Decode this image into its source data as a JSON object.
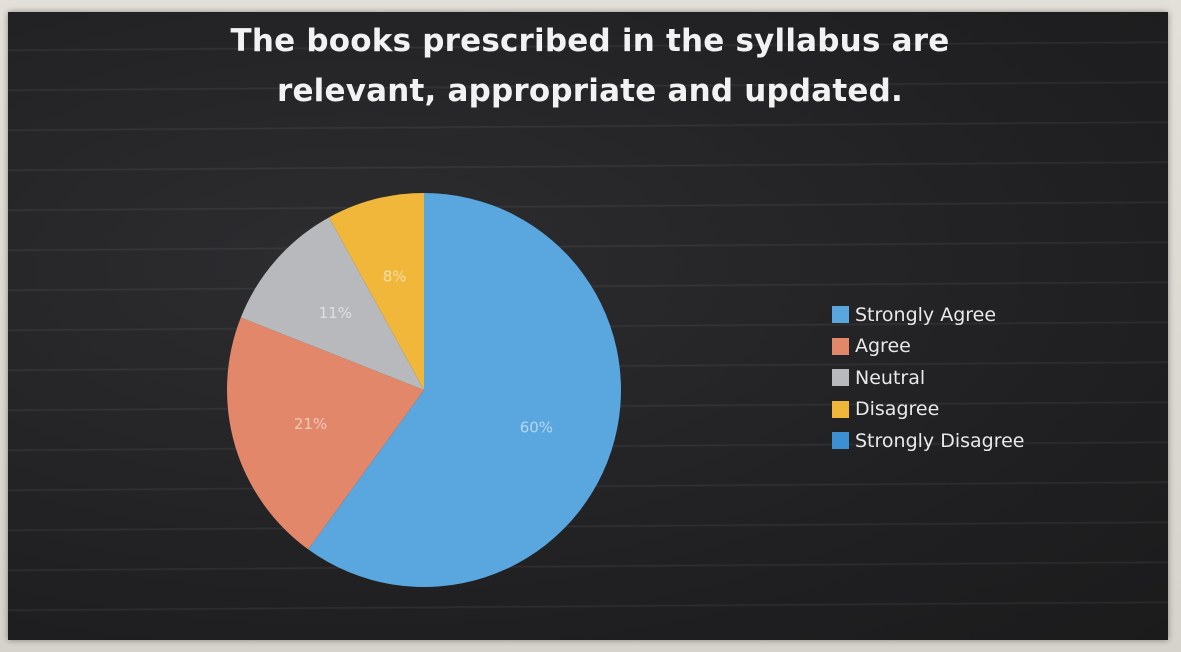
{
  "chart_data": {
    "type": "pie",
    "title_lines": [
      "The books prescribed in the syllabus are",
      "relevant, appropriate and updated."
    ],
    "slices": [
      {
        "label": "Strongly Agree",
        "value": 60,
        "value_label": "60%",
        "color": "#5aa6de"
      },
      {
        "label": "Agree",
        "value": 21,
        "value_label": "21%",
        "color": "#e3876a"
      },
      {
        "label": "Neutral",
        "value": 11,
        "value_label": "11%",
        "color": "#b8b9bd"
      },
      {
        "label": "Disagree",
        "value": 8,
        "value_label": "8%",
        "color": "#f0b73a"
      },
      {
        "label": "Strongly Disagree",
        "value": 0,
        "value_label": "",
        "color": "#3d8fd3"
      }
    ],
    "legend_position": "right"
  }
}
